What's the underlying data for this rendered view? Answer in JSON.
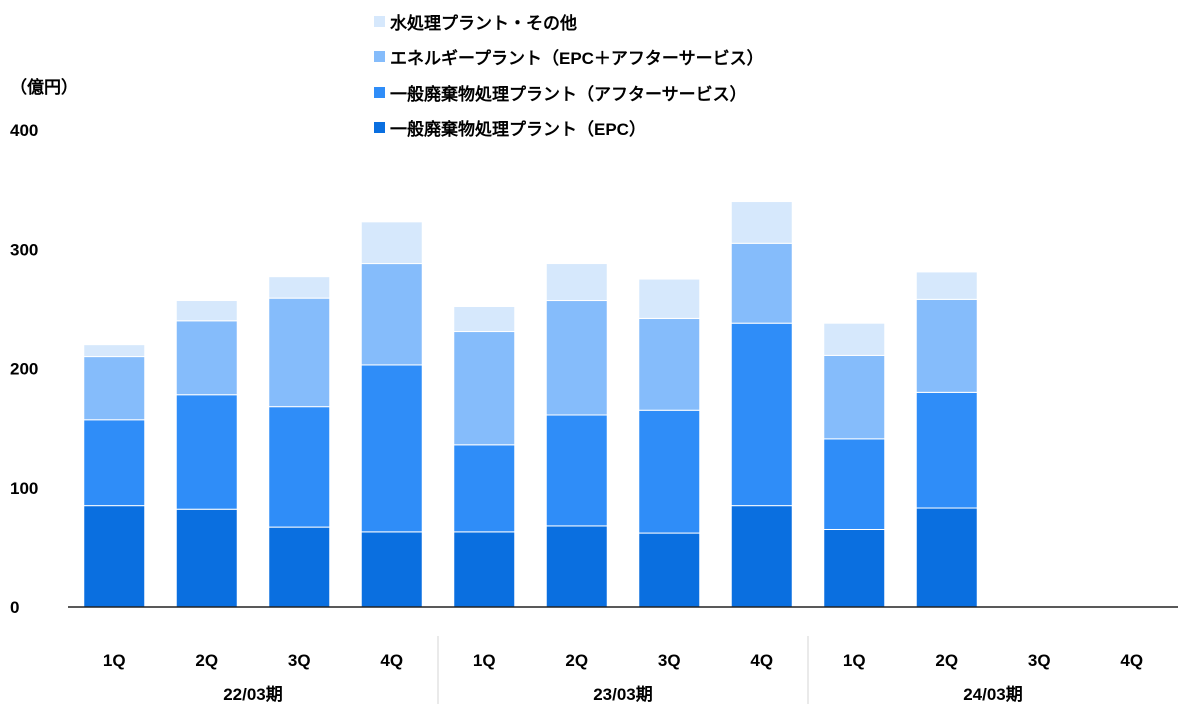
{
  "unit_label": "（億円）",
  "legend": [
    {
      "label": "水処理プラント・その他",
      "color": "#d6e8fc"
    },
    {
      "label": "エネルギープラント（EPC＋アフターサービス）",
      "color": "#85bcfb"
    },
    {
      "label": "一般廃棄物処理プラント（アフターサービス）",
      "color": "#2f8df8"
    },
    {
      "label": "一般廃棄物処理プラント（EPC）",
      "color": "#0a6fe0"
    }
  ],
  "chart_data": {
    "type": "bar",
    "stacked": true,
    "categories": [
      "1Q",
      "2Q",
      "3Q",
      "4Q",
      "1Q",
      "2Q",
      "3Q",
      "4Q",
      "1Q",
      "2Q",
      "3Q",
      "4Q"
    ],
    "groups": [
      {
        "label": "22/03期",
        "count": 4
      },
      {
        "label": "23/03期",
        "count": 4
      },
      {
        "label": "24/03期",
        "count": 4
      }
    ],
    "series": [
      {
        "name": "一般廃棄物処理プラント（EPC）",
        "color": "#0a6fe0",
        "values": [
          85,
          82,
          67,
          63,
          63,
          68,
          62,
          85,
          65,
          83,
          null,
          null
        ]
      },
      {
        "name": "一般廃棄物処理プラント（アフターサービス）",
        "color": "#2f8df8",
        "values": [
          72,
          96,
          101,
          140,
          73,
          93,
          103,
          153,
          76,
          97,
          null,
          null
        ]
      },
      {
        "name": "エネルギープラント（EPC＋アフターサービス）",
        "color": "#85bcfb",
        "values": [
          53,
          62,
          91,
          85,
          95,
          96,
          77,
          67,
          70,
          78,
          null,
          null
        ]
      },
      {
        "name": "水処理プラント・その他",
        "color": "#d6e8fc",
        "values": [
          10,
          17,
          18,
          35,
          21,
          31,
          33,
          35,
          27,
          23,
          null,
          null
        ]
      }
    ],
    "yticks": [
      0,
      100,
      200,
      300,
      400
    ],
    "ylim": [
      0,
      400
    ],
    "grid": false,
    "legend_position": "top-center"
  }
}
